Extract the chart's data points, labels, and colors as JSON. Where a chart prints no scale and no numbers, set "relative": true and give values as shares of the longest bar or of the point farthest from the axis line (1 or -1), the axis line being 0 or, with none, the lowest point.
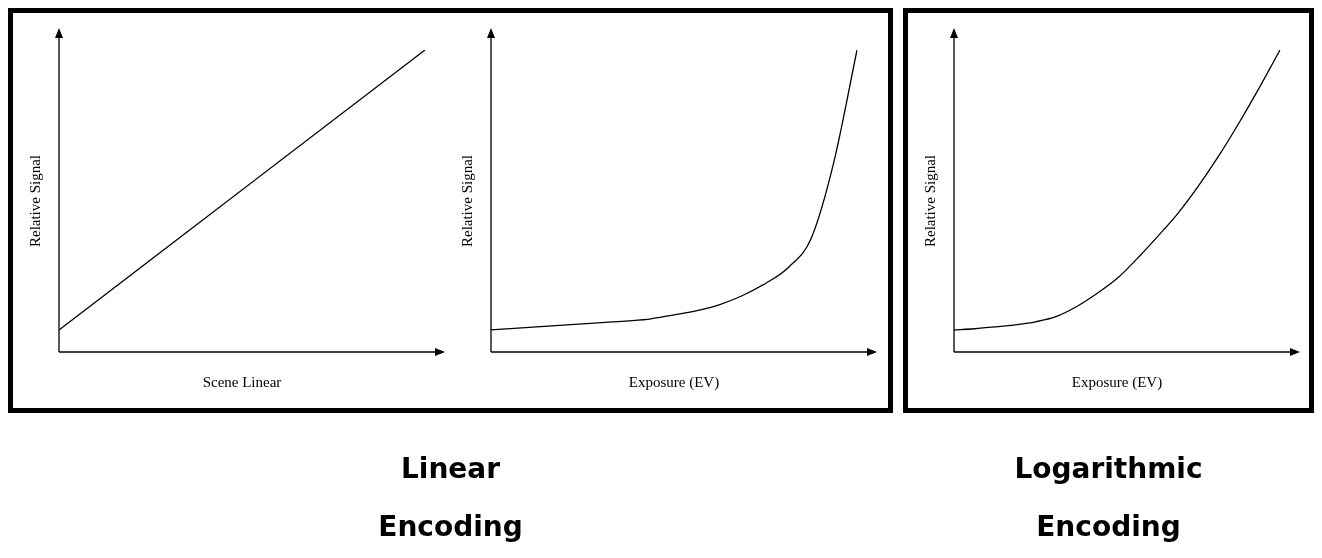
{
  "chart_data": [
    {
      "type": "line",
      "relative": true,
      "xlabel": "Scene Linear",
      "ylabel": "Relative Signal",
      "marker": "none",
      "categories": [
        null,
        null
      ],
      "series": [
        {
          "color": "#000000",
          "values": [
            0.073,
            1
          ]
        }
      ],
      "annotations": [
        "Linear Encoding"
      ]
    },
    {
      "type": "line",
      "relative": true,
      "xlabel": "Exposure (EV)",
      "ylabel": "Relative Signal",
      "marker": "none",
      "categories": [
        null,
        null,
        null,
        null,
        null,
        null,
        null,
        null,
        null,
        null,
        null,
        null,
        null,
        null,
        null,
        null,
        null
      ],
      "series": [
        {
          "color": "#000000",
          "values": [
            0.073,
            0.078,
            0.083,
            0.088,
            0.093,
            0.098,
            0.103,
            0.11,
            0.123,
            0.137,
            0.157,
            0.187,
            0.227,
            0.28,
            0.377,
            0.633,
            1
          ]
        }
      ]
    },
    {
      "type": "line",
      "relative": true,
      "xlabel": "Exposure (EV)",
      "ylabel": "Relative Signal",
      "marker": "none",
      "categories": [
        null,
        null,
        null,
        null,
        null,
        null,
        null,
        null,
        null,
        null,
        null,
        null,
        null,
        null,
        null,
        null,
        null
      ],
      "series": [
        {
          "color": "#000000",
          "values": [
            0.073,
            0.077,
            0.083,
            0.09,
            0.1,
            0.117,
            0.15,
            0.193,
            0.243,
            0.31,
            0.383,
            0.46,
            0.55,
            0.65,
            0.76,
            0.877,
            1
          ]
        }
      ],
      "annotations": [
        "Logarithmic Encoding"
      ]
    }
  ]
}
